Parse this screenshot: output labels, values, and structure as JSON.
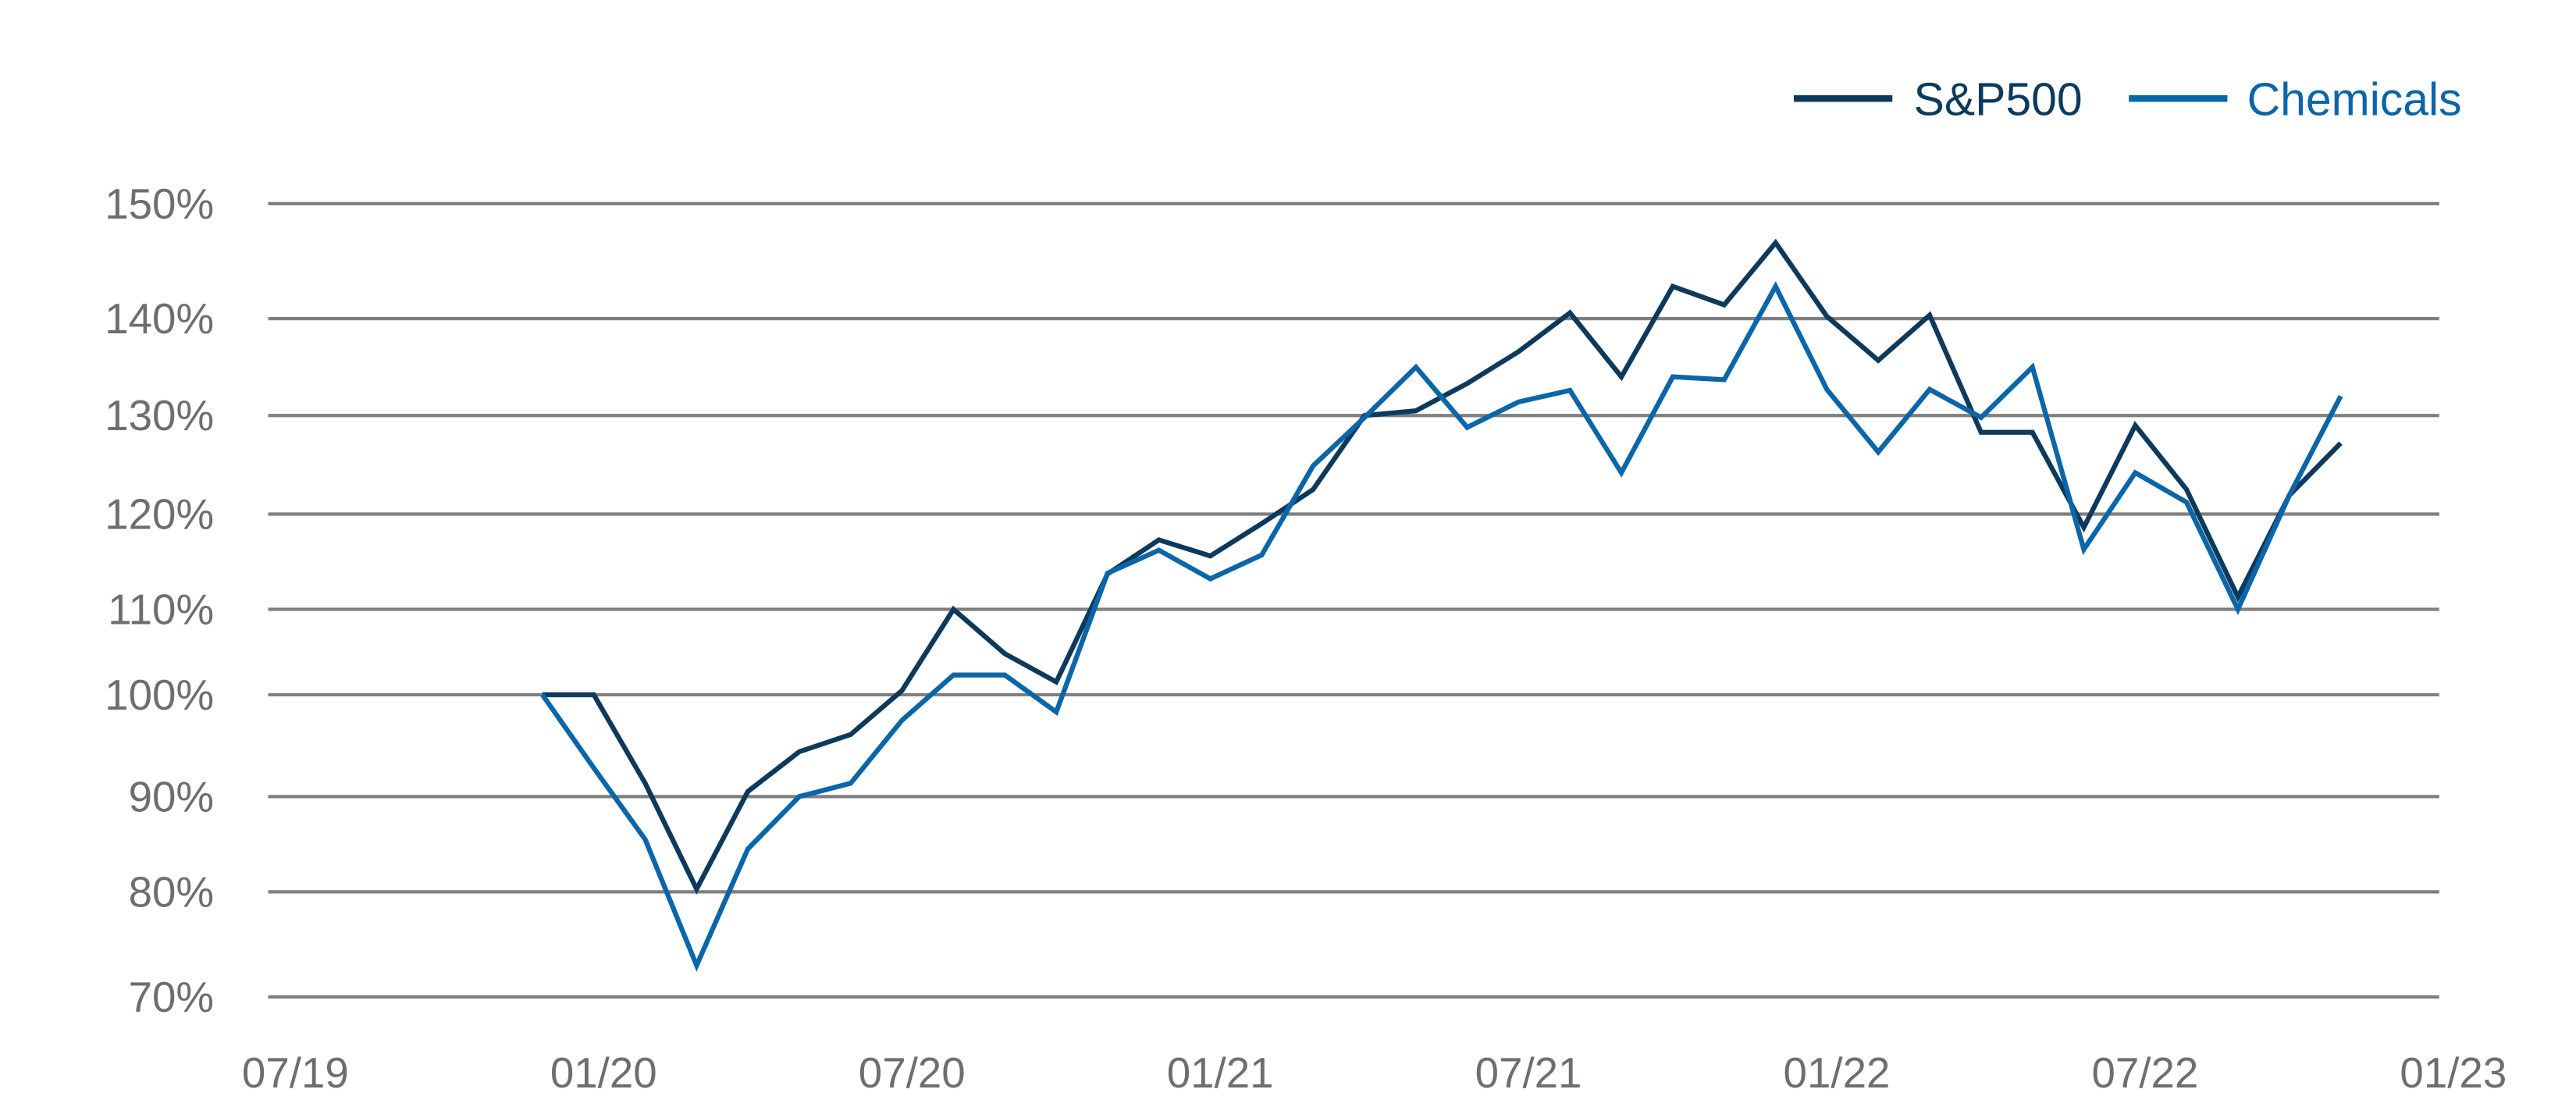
{
  "chart_data": {
    "type": "line",
    "title": "",
    "xlabel": "",
    "ylabel": "",
    "x_tick_labels": [
      "07/19",
      "01/20",
      "07/20",
      "01/21",
      "07/21",
      "01/22",
      "07/22",
      "01/23"
    ],
    "y_tick_labels": [
      "70%",
      "80%",
      "90%",
      "100%",
      "110%",
      "120%",
      "130%",
      "140%",
      "150%"
    ],
    "y_ticks": [
      70,
      80,
      90,
      100,
      110,
      120,
      130,
      140,
      150
    ],
    "ylim": [
      70,
      150
    ],
    "grid": "horizontal",
    "legend_placement": "top-right",
    "x": [
      "12/19",
      "01/20",
      "02/20",
      "03/20",
      "04/20",
      "05/20",
      "06/20",
      "07/20",
      "08/20",
      "09/20",
      "10/20",
      "11/20",
      "12/20",
      "01/21",
      "02/21",
      "03/21",
      "04/21",
      "05/21",
      "06/21",
      "07/21",
      "08/21",
      "09/21",
      "10/21",
      "11/21",
      "12/21",
      "01/22",
      "02/22",
      "03/22",
      "04/22",
      "05/22",
      "06/22",
      "07/22",
      "08/22",
      "09/22",
      "10/22",
      "11/22"
    ],
    "series": [
      {
        "name": "S&P500",
        "color": "#0d3a5c",
        "values": [
          100,
          100,
          91.3,
          80.3,
          90.5,
          94.4,
          96.1,
          100.5,
          110,
          104.8,
          101.5,
          113.7,
          117.3,
          115.6,
          119,
          122.5,
          130,
          130.5,
          133.3,
          136.6,
          140.5,
          134,
          142.8,
          141.2,
          146.6,
          140.2,
          135.7,
          140.3,
          128.3,
          128.3,
          118.6,
          129,
          122.5,
          111.3,
          121.9,
          127.2
        ]
      },
      {
        "name": "Chemicals",
        "color": "#0a66a8",
        "values": [
          100,
          92.8,
          85.5,
          73,
          84.5,
          90,
          91.3,
          97.5,
          102.3,
          102.3,
          98.3,
          113.8,
          116.2,
          113.2,
          115.7,
          124.9,
          129.8,
          135,
          128.8,
          131.4,
          132.6,
          124.2,
          134,
          133.7,
          142.8,
          132.7,
          126.3,
          132.7,
          129.8,
          135,
          116.3,
          124.2,
          121.2,
          110,
          121.9,
          132
        ]
      }
    ]
  },
  "colors": {
    "gridline": "#7f7f7f",
    "tick_text": "#6d6e71"
  }
}
